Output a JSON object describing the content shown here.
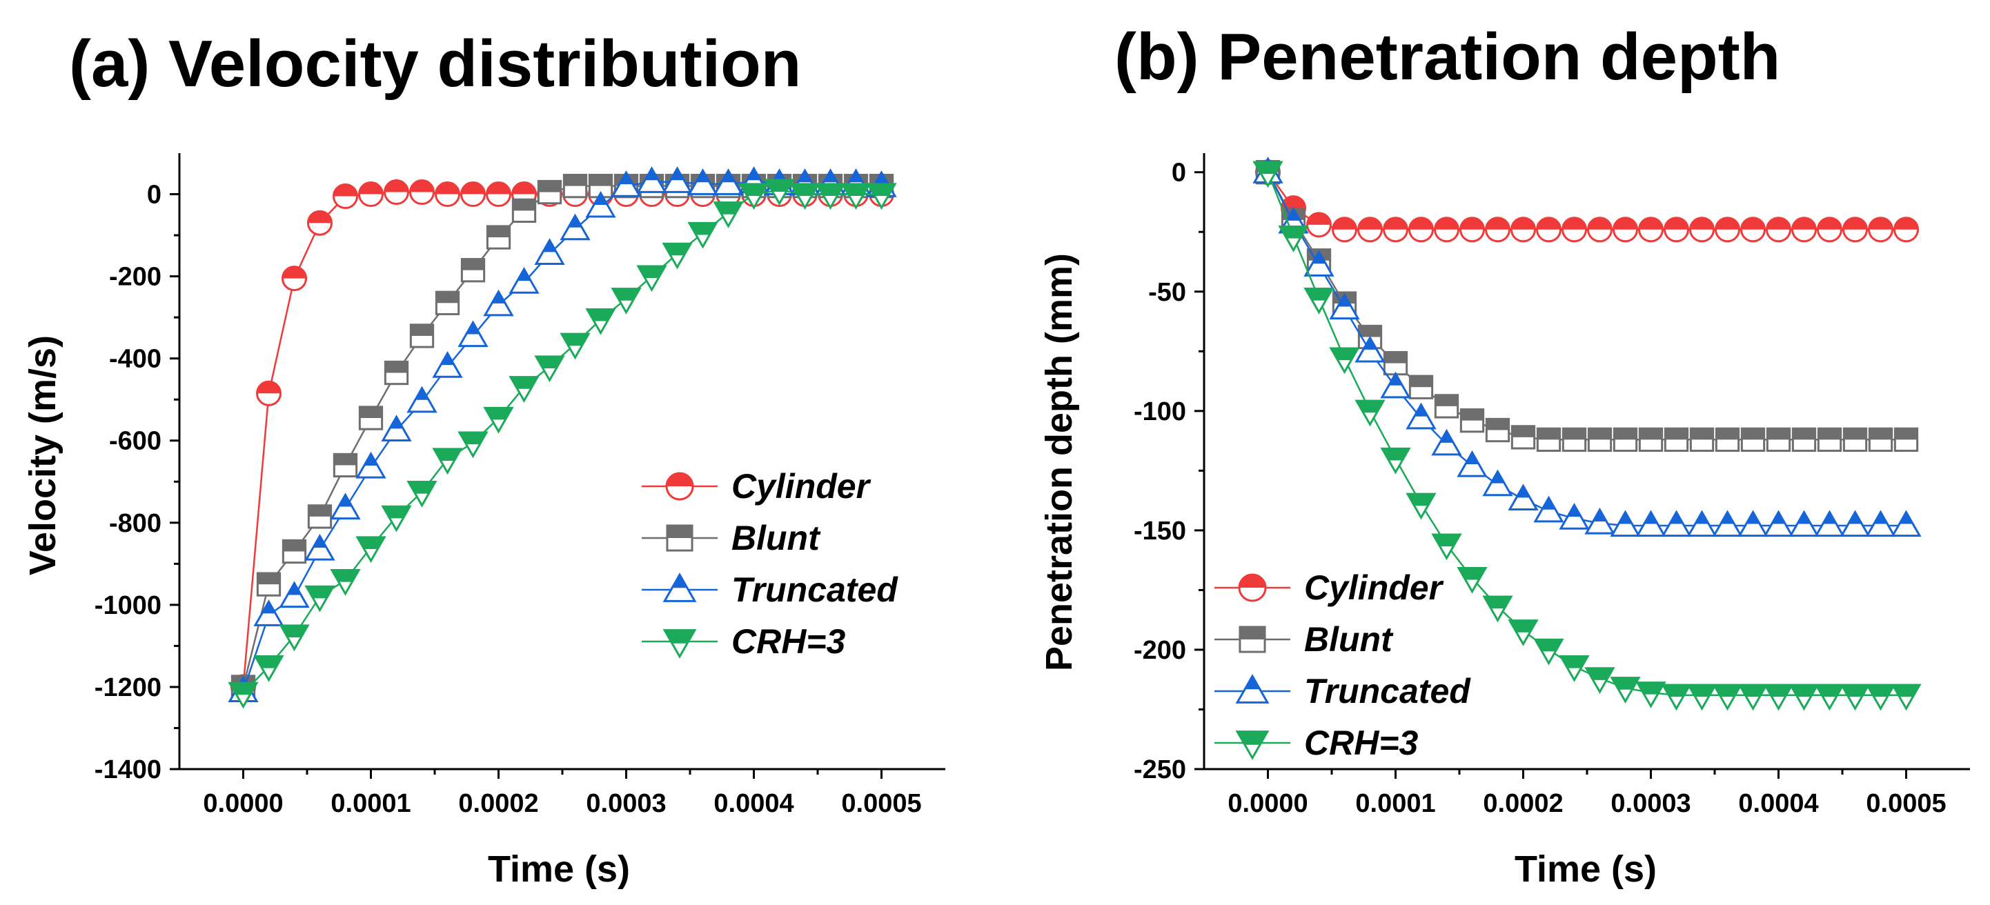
{
  "chart_data": [
    {
      "id": "a",
      "type": "line",
      "title": "(a) Velocity distribution",
      "xlabel": "Time (s)",
      "ylabel": "Velocity (m/s)",
      "xlim": [
        -5e-05,
        0.00055
      ],
      "ylim": [
        -1400,
        100
      ],
      "xticks": [
        0.0,
        0.0001,
        0.0002,
        0.0003,
        0.0004,
        0.0005
      ],
      "xtick_labels": [
        "0.0000",
        "0.0001",
        "0.0002",
        "0.0003",
        "0.0004",
        "0.0005"
      ],
      "yticks": [
        -1400,
        -1200,
        -1000,
        -800,
        -600,
        -400,
        -200,
        0
      ],
      "ytick_labels": [
        "-1400",
        "-1200",
        "-1000",
        "-800",
        "-600",
        "-400",
        "-200",
        "0"
      ],
      "legend_position": "center-right",
      "series": [
        {
          "name": "Cylinder",
          "color": "#f03a3a",
          "marker": "circle",
          "x": [
            0,
            2e-05,
            4e-05,
            6e-05,
            8e-05,
            0.0001,
            0.00012,
            0.00014,
            0.00016,
            0.00018,
            0.0002,
            0.00022,
            0.00024,
            0.00026,
            0.00028,
            0.0003,
            0.00032,
            0.00034,
            0.00036,
            0.00038,
            0.0004,
            0.00042,
            0.00044,
            0.00046,
            0.00048,
            0.0005
          ],
          "y": [
            -1200,
            -485,
            -205,
            -70,
            -5,
            0,
            5,
            5,
            0,
            0,
            0,
            0,
            0,
            0,
            0,
            0,
            0,
            0,
            0,
            0,
            0,
            0,
            0,
            0,
            0,
            0
          ]
        },
        {
          "name": "Blunt",
          "color": "#6e6e6e",
          "marker": "square",
          "x": [
            0,
            2e-05,
            4e-05,
            6e-05,
            8e-05,
            0.0001,
            0.00012,
            0.00014,
            0.00016,
            0.00018,
            0.0002,
            0.00022,
            0.00024,
            0.00026,
            0.00028,
            0.0003,
            0.00032,
            0.00034,
            0.00036,
            0.00038,
            0.0004,
            0.00042,
            0.00044,
            0.00046,
            0.00048,
            0.0005
          ],
          "y": [
            -1200,
            -950,
            -870,
            -785,
            -660,
            -545,
            -435,
            -345,
            -265,
            -185,
            -105,
            -40,
            5,
            20,
            20,
            20,
            20,
            20,
            20,
            20,
            20,
            20,
            20,
            20,
            20,
            20
          ]
        },
        {
          "name": "Truncated",
          "color": "#1565d8",
          "marker": "triangle-up",
          "x": [
            0,
            2e-05,
            4e-05,
            6e-05,
            8e-05,
            0.0001,
            0.00012,
            0.00014,
            0.00016,
            0.00018,
            0.0002,
            0.00022,
            0.00024,
            0.00026,
            0.00028,
            0.0003,
            0.00032,
            0.00034,
            0.00036,
            0.00038,
            0.0004,
            0.00042,
            0.00044,
            0.00046,
            0.00048,
            0.0005
          ],
          "y": [
            -1210,
            -1025,
            -980,
            -865,
            -765,
            -665,
            -575,
            -505,
            -420,
            -345,
            -270,
            -215,
            -145,
            -85,
            -30,
            20,
            30,
            30,
            25,
            25,
            30,
            25,
            25,
            25,
            25,
            20
          ]
        },
        {
          "name": "CRH=3",
          "color": "#1aaa5a",
          "marker": "triangle-down",
          "x": [
            0,
            2e-05,
            4e-05,
            6e-05,
            8e-05,
            0.0001,
            0.00012,
            0.00014,
            0.00016,
            0.00018,
            0.0002,
            0.00022,
            0.00024,
            0.00026,
            0.00028,
            0.0003,
            0.00032,
            0.00034,
            0.00036,
            0.00038,
            0.0004,
            0.00042,
            0.00044,
            0.00046,
            0.00048,
            0.0005
          ],
          "y": [
            -1215,
            -1150,
            -1075,
            -980,
            -940,
            -860,
            -785,
            -725,
            -645,
            -605,
            -545,
            -470,
            -420,
            -365,
            -305,
            -255,
            -200,
            -145,
            -95,
            -45,
            0,
            10,
            0,
            0,
            0,
            0
          ]
        }
      ]
    },
    {
      "id": "b",
      "type": "line",
      "title": "(b) Penetration depth",
      "xlabel": "Time (s)",
      "ylabel": "Penetration depth (mm)",
      "xlim": [
        -5e-05,
        0.00055
      ],
      "ylim": [
        -250,
        8
      ],
      "xticks": [
        0.0,
        0.0001,
        0.0002,
        0.0003,
        0.0004,
        0.0005
      ],
      "xtick_labels": [
        "0.0000",
        "0.0001",
        "0.0002",
        "0.0003",
        "0.0004",
        "0.0005"
      ],
      "yticks": [
        -250,
        -200,
        -150,
        -100,
        -50,
        0
      ],
      "ytick_labels": [
        "-250",
        "-200",
        "-150",
        "-100",
        "-50",
        "0"
      ],
      "legend_position": "lower-left",
      "series": [
        {
          "name": "Cylinder",
          "color": "#f03a3a",
          "marker": "circle",
          "x": [
            0,
            2e-05,
            4e-05,
            6e-05,
            8e-05,
            0.0001,
            0.00012,
            0.00014,
            0.00016,
            0.00018,
            0.0002,
            0.00022,
            0.00024,
            0.00026,
            0.00028,
            0.0003,
            0.00032,
            0.00034,
            0.00036,
            0.00038,
            0.0004,
            0.00042,
            0.00044,
            0.00046,
            0.00048,
            0.0005
          ],
          "y": [
            0,
            -15,
            -22,
            -24,
            -24,
            -24,
            -24,
            -24,
            -24,
            -24,
            -24,
            -24,
            -24,
            -24,
            -24,
            -24,
            -24,
            -24,
            -24,
            -24,
            -24,
            -24,
            -24,
            -24,
            -24,
            -24
          ]
        },
        {
          "name": "Blunt",
          "color": "#6e6e6e",
          "marker": "square",
          "x": [
            0,
            2e-05,
            4e-05,
            6e-05,
            8e-05,
            0.0001,
            0.00012,
            0.00014,
            0.00016,
            0.00018,
            0.0002,
            0.00022,
            0.00024,
            0.00026,
            0.00028,
            0.0003,
            0.00032,
            0.00034,
            0.00036,
            0.00038,
            0.0004,
            0.00042,
            0.00044,
            0.00046,
            0.00048,
            0.0005
          ],
          "y": [
            0,
            -20,
            -37,
            -55,
            -69,
            -80,
            -90,
            -98,
            -104,
            -108,
            -111,
            -112,
            -112,
            -112,
            -112,
            -112,
            -112,
            -112,
            -112,
            -112,
            -112,
            -112,
            -112,
            -112,
            -112,
            -112
          ]
        },
        {
          "name": "Truncated",
          "color": "#1565d8",
          "marker": "triangle-up",
          "x": [
            0,
            2e-05,
            4e-05,
            6e-05,
            8e-05,
            0.0001,
            0.00012,
            0.00014,
            0.00016,
            0.00018,
            0.0002,
            0.00022,
            0.00024,
            0.00026,
            0.00028,
            0.0003,
            0.00032,
            0.00034,
            0.00036,
            0.00038,
            0.0004,
            0.00042,
            0.00044,
            0.00046,
            0.00048,
            0.0005
          ],
          "y": [
            0,
            -21,
            -39,
            -57,
            -75,
            -90,
            -103,
            -114,
            -123,
            -131,
            -137,
            -142,
            -145,
            -147,
            -148,
            -148,
            -148,
            -148,
            -148,
            -148,
            -148,
            -148,
            -148,
            -148,
            -148,
            -148
          ]
        },
        {
          "name": "CRH=3",
          "color": "#1aaa5a",
          "marker": "triangle-down",
          "x": [
            0,
            2e-05,
            4e-05,
            6e-05,
            8e-05,
            0.0001,
            0.00012,
            0.00014,
            0.00016,
            0.00018,
            0.0002,
            0.00022,
            0.00024,
            0.00026,
            0.00028,
            0.0003,
            0.00032,
            0.00034,
            0.00036,
            0.00038,
            0.0004,
            0.00042,
            0.00044,
            0.00046,
            0.00048,
            0.0005
          ],
          "y": [
            0,
            -27,
            -53,
            -78,
            -100,
            -120,
            -139,
            -156,
            -170,
            -182,
            -192,
            -200,
            -207,
            -212,
            -216,
            -218,
            -219,
            -219,
            -219,
            -219,
            -219,
            -219,
            -219,
            -219,
            -219,
            -219
          ]
        }
      ]
    }
  ]
}
